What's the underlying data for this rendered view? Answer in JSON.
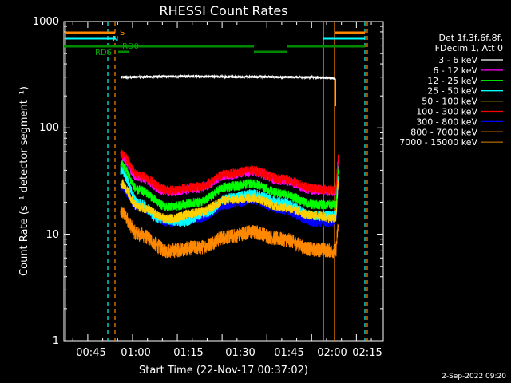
{
  "chart_data": {
    "type": "line",
    "title": "RHESSI Count Rates",
    "xlabel": "Start Time (22-Nov-17 00:37:02)",
    "ylabel": "Count Rate (s⁻¹ detector segment⁻¹)",
    "y_scale": "log",
    "ylim": [
      1,
      1000
    ],
    "xlim_minutes_from_start": [
      0,
      107
    ],
    "x_tick_labels": [
      "00:45",
      "01:00",
      "01:15",
      "01:30",
      "01:45",
      "02:00",
      "02:15"
    ],
    "y_tick_labels": [
      "1",
      "10",
      "100",
      "1000"
    ],
    "legend_header": [
      "Det 1f,3f,6f,8f,",
      "FDecim 1, Att 0"
    ],
    "legend_position": "right",
    "series": [
      {
        "name": "3 - 6 keV",
        "color": "#ffffff",
        "anchors": [
          [
            19,
            300
          ],
          [
            40,
            305
          ],
          [
            60,
            302
          ],
          [
            80,
            300
          ],
          [
            89,
            296
          ],
          [
            91,
            290
          ]
        ]
      },
      {
        "name": "6 - 12 keV",
        "color": "#ff00ff",
        "anchors": [
          [
            19,
            55
          ],
          [
            25,
            34
          ],
          [
            35,
            25
          ],
          [
            45,
            27
          ],
          [
            55,
            36
          ],
          [
            63,
            39
          ],
          [
            73,
            32
          ],
          [
            84,
            26
          ],
          [
            91,
            25
          ],
          [
            92,
            50
          ]
        ]
      },
      {
        "name": "12 - 25 keV",
        "color": "#00ff00",
        "anchors": [
          [
            19,
            46
          ],
          [
            25,
            26
          ],
          [
            35,
            18
          ],
          [
            45,
            20
          ],
          [
            55,
            28
          ],
          [
            63,
            30
          ],
          [
            73,
            24
          ],
          [
            84,
            19
          ],
          [
            91,
            19
          ],
          [
            92,
            42
          ]
        ]
      },
      {
        "name": "25 - 50 keV",
        "color": "#00ffff",
        "anchors": [
          [
            19,
            40
          ],
          [
            25,
            20
          ],
          [
            32,
            14
          ],
          [
            40,
            13
          ],
          [
            48,
            16
          ],
          [
            55,
            22
          ],
          [
            63,
            24
          ],
          [
            73,
            20
          ],
          [
            84,
            15
          ],
          [
            91,
            15
          ],
          [
            92,
            35
          ]
        ]
      },
      {
        "name": "50 - 100 keV",
        "color": "#ffd000",
        "anchors": [
          [
            19,
            30
          ],
          [
            25,
            18
          ],
          [
            35,
            14
          ],
          [
            45,
            16
          ],
          [
            55,
            21
          ],
          [
            63,
            22
          ],
          [
            73,
            18
          ],
          [
            84,
            15
          ],
          [
            91,
            14
          ],
          [
            92,
            30
          ]
        ]
      },
      {
        "name": "100 - 300 keV",
        "color": "#ff0000",
        "anchors": [
          [
            19,
            58
          ],
          [
            25,
            36
          ],
          [
            35,
            26
          ],
          [
            45,
            28
          ],
          [
            55,
            37
          ],
          [
            63,
            40
          ],
          [
            73,
            33
          ],
          [
            84,
            27
          ],
          [
            91,
            26
          ],
          [
            92,
            52
          ]
        ]
      },
      {
        "name": "300 - 800 keV",
        "color": "#0000ff",
        "anchors": [
          [
            19,
            28
          ],
          [
            25,
            18
          ],
          [
            35,
            13
          ],
          [
            45,
            14
          ],
          [
            55,
            19
          ],
          [
            63,
            21
          ],
          [
            73,
            17
          ],
          [
            84,
            13
          ],
          [
            91,
            13
          ],
          [
            92,
            28
          ]
        ]
      },
      {
        "name": "800 - 7000 keV",
        "color": "#ff8800",
        "anchors": [
          [
            19,
            16
          ],
          [
            25,
            10
          ],
          [
            35,
            7
          ],
          [
            45,
            7.5
          ],
          [
            55,
            9.5
          ],
          [
            63,
            10.5
          ],
          [
            73,
            9
          ],
          [
            84,
            7.2
          ],
          [
            91,
            7
          ],
          [
            92,
            12
          ]
        ]
      },
      {
        "name": "7000 - 15000 keV",
        "color": "#a06000",
        "anchors": []
      }
    ],
    "state_flags": {
      "labels": [
        "S",
        "N",
        "RD6",
        "RD0"
      ],
      "s_color": "#ff8800",
      "n_color": "#00ffff",
      "rd_color": "#008800"
    },
    "vertical_markers": [
      {
        "kind": "dashed",
        "color": "#00ffff"
      },
      {
        "kind": "dashed",
        "color": "#ff8800"
      },
      {
        "kind": "solid",
        "color": "#00ffff"
      },
      {
        "kind": "solid",
        "color": "#ff8800"
      },
      {
        "kind": "dashed",
        "color": "#00ffff"
      },
      {
        "kind": "dashed",
        "color": "#ff8800"
      }
    ]
  },
  "footer": {
    "date": "2-Sep-2022 09:20"
  }
}
